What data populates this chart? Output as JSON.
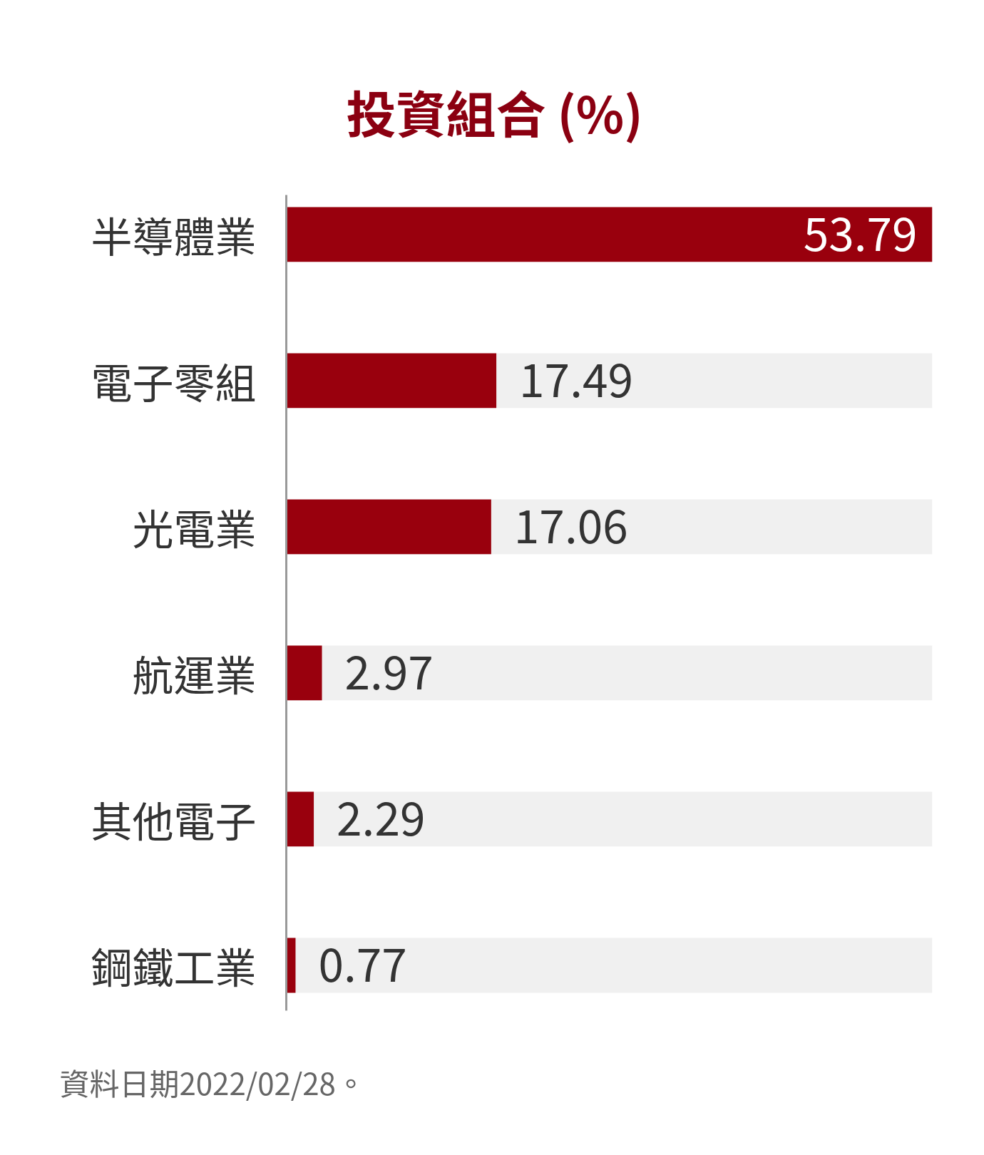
{
  "chart_data": {
    "type": "bar",
    "orientation": "horizontal",
    "title": "投資組合 (%)",
    "categories": [
      "半導體業",
      "電子零組",
      "光電業",
      "航運業",
      "其他電子",
      "鋼鐵工業"
    ],
    "values": [
      53.79,
      17.49,
      17.06,
      2.97,
      2.29,
      0.77
    ],
    "color": "#99000d",
    "data_labels": true,
    "grid": false,
    "tick_labels": "y",
    "annotations": [
      "資料日期2022/02/28。"
    ]
  }
}
